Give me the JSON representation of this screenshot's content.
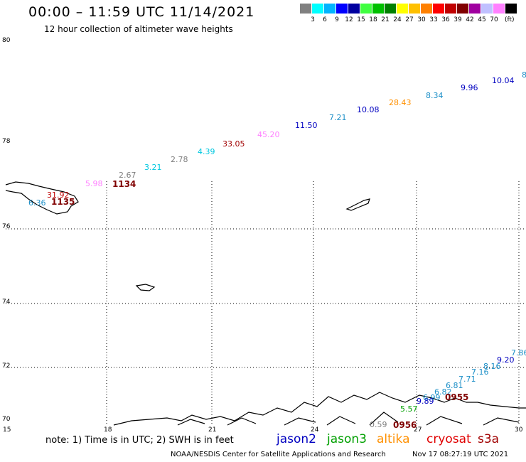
{
  "header": {
    "title": "00:00 – 11:59 UTC 11/14/2021",
    "subtitle": "12 hour collection of altimeter wave heights"
  },
  "legend": {
    "unit": "(ft)",
    "swatches": [
      {
        "color": "#808080",
        "label": ""
      },
      {
        "color": "#00ffff",
        "label": "3"
      },
      {
        "color": "#00b4ff",
        "label": "6"
      },
      {
        "color": "#0000ff",
        "label": "9"
      },
      {
        "color": "#0000a0",
        "label": "12"
      },
      {
        "color": "#40ff40",
        "label": "15"
      },
      {
        "color": "#00c000",
        "label": "18"
      },
      {
        "color": "#008000",
        "label": "21"
      },
      {
        "color": "#ffff00",
        "label": "24"
      },
      {
        "color": "#ffc000",
        "label": "27"
      },
      {
        "color": "#ff8000",
        "label": "30"
      },
      {
        "color": "#ff0000",
        "label": "33"
      },
      {
        "color": "#c00000",
        "label": "36"
      },
      {
        "color": "#800000",
        "label": "39"
      },
      {
        "color": "#a000a0",
        "label": "42"
      },
      {
        "color": "#c0c0ff",
        "label": "45"
      },
      {
        "color": "#ff80ff",
        "label": "70"
      },
      {
        "color": "#000000",
        "label": ""
      }
    ]
  },
  "axes": {
    "lat_ticks": [
      "80",
      "78",
      "76",
      "74",
      "72",
      "70"
    ],
    "lon_ticks": [
      "15",
      "18",
      "21",
      "24",
      "27",
      "30"
    ]
  },
  "track_north": [
    {
      "v": "6.36",
      "c": "#1e90c8"
    },
    {
      "v": "31.92",
      "c": "#c00000"
    },
    {
      "v": "5.98",
      "c": "#ff80ff"
    },
    {
      "v": "2.67",
      "c": "#808080"
    },
    {
      "v": "3.21",
      "c": "#00c8e0"
    },
    {
      "v": "2.78",
      "c": "#808080"
    },
    {
      "v": "4.39",
      "c": "#00c8e0"
    },
    {
      "v": "33.05",
      "c": "#a00000"
    },
    {
      "v": "45.20",
      "c": "#ff80ff"
    },
    {
      "v": "11.50",
      "c": "#0000c0"
    },
    {
      "v": "7.21",
      "c": "#1e90c8"
    },
    {
      "v": "10.08",
      "c": "#0000c0"
    },
    {
      "v": "28.43",
      "c": "#ff9000"
    },
    {
      "v": "8.34",
      "c": "#1e90c8"
    },
    {
      "v": "9.96",
      "c": "#0000c0"
    },
    {
      "v": "10.04",
      "c": "#0000c0"
    },
    {
      "v": "8",
      "c": "#1e90c8"
    }
  ],
  "track_south": [
    {
      "v": "0.59",
      "c": "#808080"
    },
    {
      "v": "5.57",
      "c": "#00a000"
    },
    {
      "v": "9.89",
      "c": "#0000c0"
    },
    {
      "v": "6.99",
      "c": "#1e90c8"
    },
    {
      "v": "6.82",
      "c": "#1e90c8"
    },
    {
      "v": "6.81",
      "c": "#1e90c8"
    },
    {
      "v": "7.71",
      "c": "#1e90c8"
    },
    {
      "v": "7.16",
      "c": "#1e90c8"
    },
    {
      "v": "8.16",
      "c": "#1e90c8"
    },
    {
      "v": "9.20",
      "c": "#0000c0"
    },
    {
      "v": "7.86",
      "c": "#1e90c8"
    }
  ],
  "time_labels": [
    "1135",
    "1134",
    "0955",
    "0956"
  ],
  "note": "note: 1) Time is in UTC; 2) SWH is in feet",
  "satellites": [
    {
      "name": "jason2",
      "color": "#0000c0"
    },
    {
      "name": "jason3",
      "color": "#00a000"
    },
    {
      "name": "altika",
      "color": "#ff9000"
    },
    {
      "name": "cryosat",
      "color": "#e00000"
    },
    {
      "name": "s3a",
      "color": "#a00000"
    }
  ],
  "footer": {
    "credit": "NOAA/NESDIS Center for Satellite Applications and Research",
    "timestamp": "Nov 17 08:27:19 UTC 2021"
  }
}
